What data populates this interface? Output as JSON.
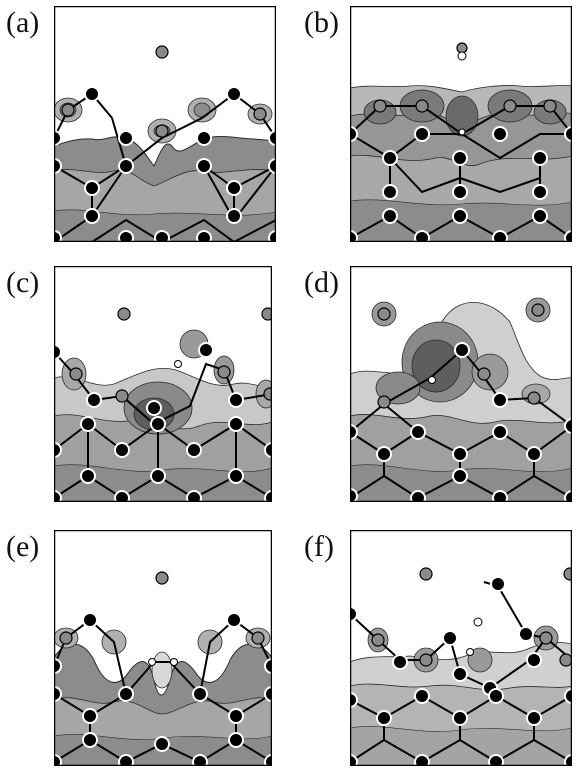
{
  "panels": [
    {
      "label": "(a)"
    },
    {
      "label": "(b)"
    },
    {
      "label": "(c)"
    },
    {
      "label": "(d)"
    },
    {
      "label": "(e)"
    },
    {
      "label": "(f)"
    }
  ],
  "colors": {
    "frame": "#000000",
    "bulk_fill": "#8c8c8c",
    "mid_fill": "#a6a6a6",
    "light_fill": "#c8c8c8",
    "contour_line": "#2a2a2a",
    "atom_substrate": "#000000",
    "atom_adsorbate": "#8a8a8a",
    "atom_hydrogen": "#ffffff"
  }
}
